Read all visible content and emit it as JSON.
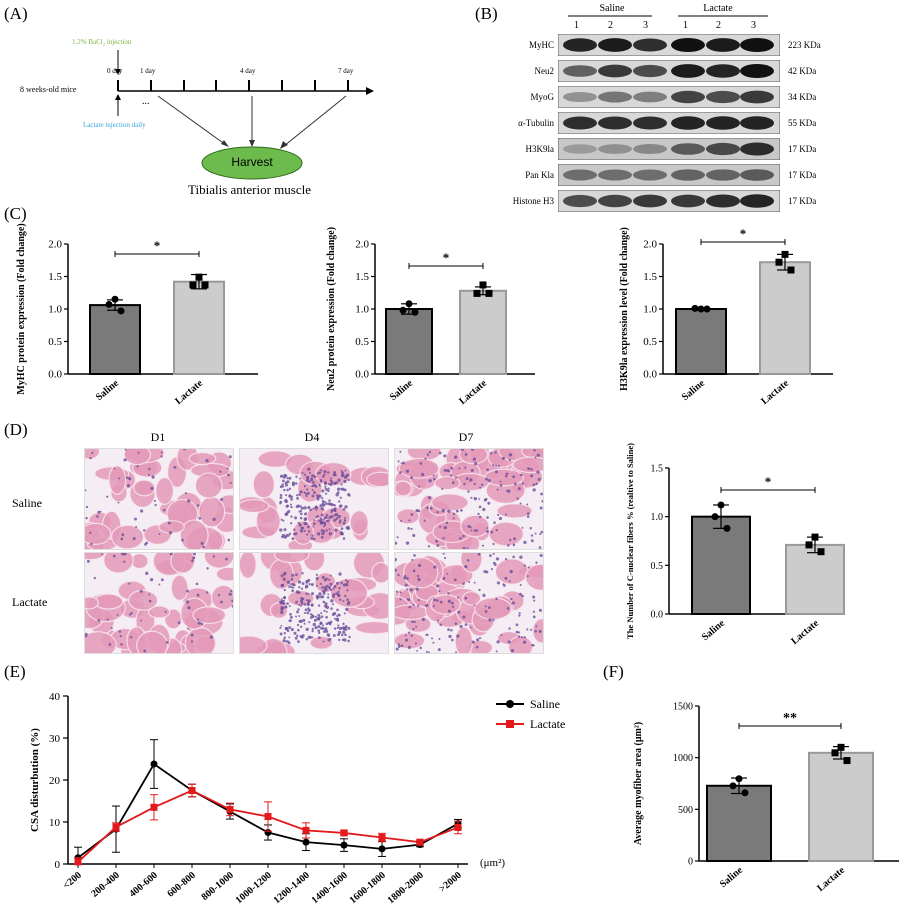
{
  "panels": {
    "A": {
      "letter": "(A)",
      "injection_label": "1.2% BaCl₂ injection",
      "injection_color": "#7ab648",
      "lactate_label": "Lactate injection daily",
      "lactate_color": "#33a6dd",
      "mouse_label": "8 weeks-old mice",
      "day_labels": [
        "0 day",
        "1 day",
        "4 day",
        "7 day"
      ],
      "ellipsis": "...",
      "harvest_label": "Harvest",
      "harvest_color": "#6cbb4c",
      "tissue_label": "Tibialis anterior muscle"
    },
    "B": {
      "letter": "(B)",
      "group_labels": [
        "Saline",
        "Lactate"
      ],
      "lane_numbers": [
        "1",
        "2",
        "3",
        "1",
        "2",
        "3"
      ],
      "bands": [
        {
          "protein": "MyHC",
          "size": "223 KDa"
        },
        {
          "protein": "Neu2",
          "size": "42 KDa"
        },
        {
          "protein": "MyoG",
          "size": "34 KDa"
        },
        {
          "protein": "α-Tubulin",
          "size": "55 KDa"
        },
        {
          "protein": "H3K9la",
          "size": "17 KDa"
        },
        {
          "protein": "Pan Kla",
          "size": "17 KDa"
        },
        {
          "protein": "Histone H3",
          "size": "17 KDa"
        }
      ]
    },
    "C": {
      "letter": "(C)"
    },
    "D": {
      "letter": "(D)",
      "col_labels": [
        "D1",
        "D4",
        "D7"
      ],
      "row_labels": [
        "Saline",
        "Lactate"
      ],
      "he_colors": {
        "pink": "#e49ab9",
        "purple": "#6b4e9a",
        "white": "#f4eef4"
      }
    },
    "E": {
      "letter": "(E)"
    },
    "F": {
      "letter": "(F)"
    }
  },
  "chart_data": [
    {
      "type": "bar",
      "panel": "C1",
      "categories": [
        "Saline",
        "Lactate"
      ],
      "values": [
        1.06,
        1.42
      ],
      "errors": [
        0.08,
        0.11
      ],
      "points": [
        [
          1.15,
          1.07,
          0.97
        ],
        [
          1.49,
          1.37,
          1.37
        ]
      ],
      "ylabel": "MyHC protein expression (Fold change)",
      "ylim": [
        0,
        2.0
      ],
      "yticks": [
        "0.0",
        "0.5",
        "1.0",
        "1.5",
        "2.0"
      ],
      "significance": "*",
      "bar_colors": [
        "#7a7a7a",
        "#cccccc"
      ],
      "point_markers": [
        "circle",
        "square"
      ]
    },
    {
      "type": "bar",
      "panel": "C2",
      "categories": [
        "Saline",
        "Lactate"
      ],
      "values": [
        1.0,
        1.28
      ],
      "errors": [
        0.08,
        0.06
      ],
      "points": [
        [
          1.08,
          0.98,
          0.95
        ],
        [
          1.37,
          1.24,
          1.24
        ]
      ],
      "ylabel": "Neu2 protein expression (Fold change)",
      "ylim": [
        0,
        2.0
      ],
      "yticks": [
        "0.0",
        "0.5",
        "1.0",
        "1.5",
        "2.0"
      ],
      "significance": "*",
      "bar_colors": [
        "#7a7a7a",
        "#cccccc"
      ],
      "point_markers": [
        "circle",
        "square"
      ]
    },
    {
      "type": "bar",
      "panel": "C3",
      "categories": [
        "Saline",
        "Lactate"
      ],
      "values": [
        1.0,
        1.72
      ],
      "errors": [
        0.02,
        0.12
      ],
      "points": [
        [
          1.0,
          1.01,
          1.0
        ],
        [
          1.84,
          1.72,
          1.6
        ]
      ],
      "ylabel": "H3K9la expression level (Fold change)",
      "ylim": [
        0,
        2.0
      ],
      "yticks": [
        "0.0",
        "0.5",
        "1.0",
        "1.5",
        "2.0"
      ],
      "significance": "*",
      "bar_colors": [
        "#7a7a7a",
        "#cccccc"
      ],
      "point_markers": [
        "circle",
        "square"
      ]
    },
    {
      "type": "bar",
      "panel": "D",
      "categories": [
        "Saline",
        "Lactate"
      ],
      "values": [
        1.0,
        0.71
      ],
      "errors": [
        0.12,
        0.08
      ],
      "points": [
        [
          1.12,
          1.0,
          0.88
        ],
        [
          0.79,
          0.71,
          0.64
        ]
      ],
      "ylabel": "The Number of C-nuclear fibers % (realtive to Saline)",
      "ylim": [
        0,
        1.5
      ],
      "yticks": [
        "0.0",
        "0.5",
        "1.0",
        "1.5"
      ],
      "significance": "*",
      "bar_colors": [
        "#7a7a7a",
        "#cccccc"
      ],
      "point_markers": [
        "circle",
        "square"
      ]
    },
    {
      "type": "line",
      "panel": "E",
      "categories": [
        "<200",
        "200-400",
        "400-600",
        "600-800",
        "800-1000",
        "1000-1200",
        "1200-1400",
        "1400-1600",
        "1600-1800",
        "1800-2000",
        ">2000"
      ],
      "series": [
        {
          "name": "Saline",
          "color": "#000000",
          "marker": "circle",
          "values": [
            1.5,
            8.3,
            23.8,
            17.5,
            12.5,
            7.5,
            5.2,
            4.5,
            3.6,
            4.6,
            9.6
          ],
          "errors": [
            2.5,
            5.5,
            5.8,
            1.5,
            1.8,
            1.8,
            2.0,
            1.5,
            1.8,
            0.5,
            1.0
          ]
        },
        {
          "name": "Lactate",
          "color": "#e31a1c",
          "marker": "square",
          "values": [
            0.5,
            8.8,
            13.5,
            17.5,
            13.0,
            11.3,
            8.0,
            7.4,
            6.3,
            5.2,
            8.7
          ],
          "errors": [
            1.0,
            1.0,
            3.0,
            1.5,
            1.5,
            3.5,
            1.8,
            0.5,
            1.0,
            0.5,
            1.5
          ]
        }
      ],
      "ylabel": "CSA disturbution (%)",
      "xlabel": "(μm²)",
      "ylim": [
        0,
        40
      ],
      "yticks": [
        "0",
        "10",
        "20",
        "30",
        "40"
      ]
    },
    {
      "type": "bar",
      "panel": "F",
      "categories": [
        "Saline",
        "Lactate"
      ],
      "values": [
        728,
        1047
      ],
      "errors": [
        75,
        60
      ],
      "points": [
        [
          796,
          727,
          660
        ],
        [
          1100,
          1047,
          972
        ]
      ],
      "ylabel": "Average myofiber area (μm²)",
      "ylim": [
        0,
        1500
      ],
      "yticks": [
        "0",
        "500",
        "1000",
        "1500"
      ],
      "significance": "**",
      "bar_colors": [
        "#7a7a7a",
        "#cccccc"
      ],
      "point_markers": [
        "circle",
        "square"
      ]
    }
  ]
}
